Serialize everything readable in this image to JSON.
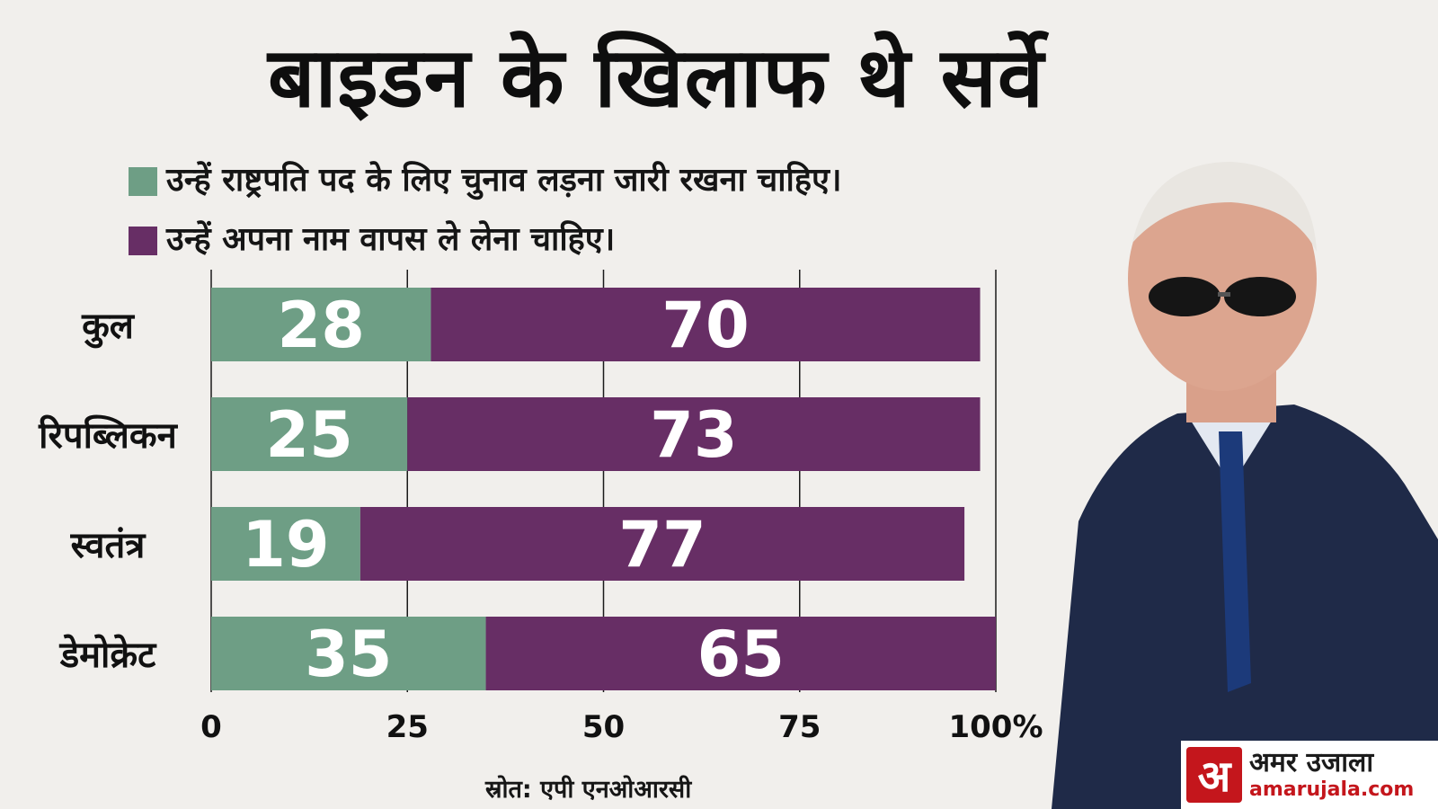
{
  "title": "बाइडन के खिलाफ थे सर्वे",
  "legend": [
    {
      "label": "उन्हें राष्ट्रपति पद के लिए चुनाव लड़ना जारी रखना चाहिए।",
      "color": "#6e9e85"
    },
    {
      "label": "उन्हें अपना नाम वापस ले लेना चाहिए।",
      "color": "#672e65"
    }
  ],
  "source": "स्रोत: एपी एनओआरसी",
  "logo": {
    "mark": "अ",
    "name": "अमर उजाला",
    "domain": "amarujala.com"
  },
  "chart_data": {
    "type": "bar",
    "orientation": "horizontal",
    "stacked": true,
    "categories": [
      "कुल",
      "रिपब्लिकन",
      "स्वतंत्र",
      "डेमोक्रेट"
    ],
    "series": [
      {
        "name": "उन्हें राष्ट्रपति पद के लिए चुनाव लड़ना जारी रखना चाहिए।",
        "values": [
          28,
          25,
          19,
          35
        ],
        "color": "#6e9e85"
      },
      {
        "name": "उन्हें अपना नाम वापस ले लेना चाहिए।",
        "values": [
          70,
          73,
          77,
          65
        ],
        "color": "#672e65"
      }
    ],
    "xlim": [
      0,
      100
    ],
    "xticks": [
      "0",
      "25",
      "50",
      "75",
      "100%"
    ],
    "grid": true,
    "legend_position": "top-left"
  }
}
